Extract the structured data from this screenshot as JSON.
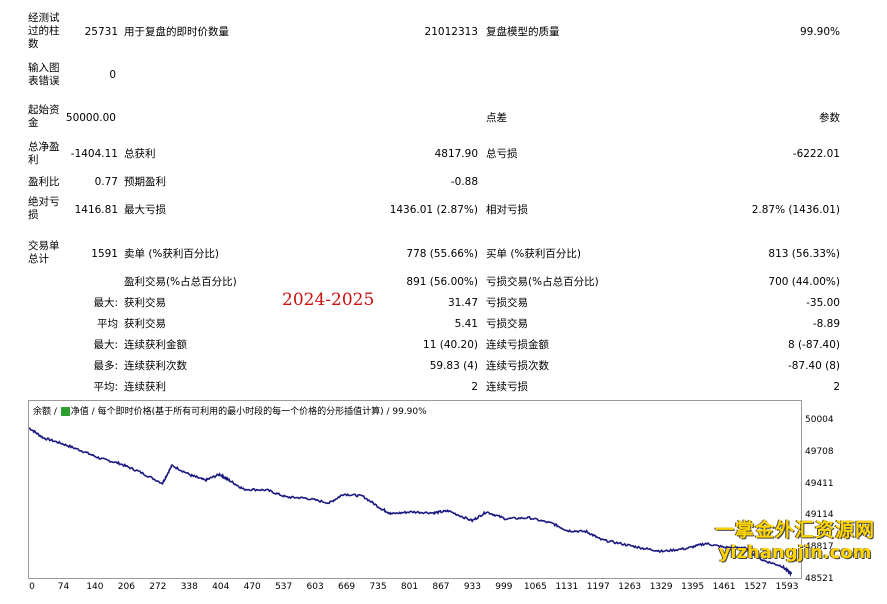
{
  "report": {
    "bars_label": "经测试过的柱数",
    "bars_value": "25731",
    "ticks_label": "用于复盘的即时价数量",
    "ticks_value": "21012313",
    "quality_label": "复盘模型的质量",
    "quality_value": "99.90%",
    "errors_label": "输入图表错误",
    "errors_value": "0",
    "deposit_label": "起始资金",
    "deposit_value": "50000.00",
    "spread_label": "点差",
    "params_label": "参数",
    "net_label": "总净盈利",
    "net_value": "-1404.11",
    "gross_profit_label": "总获利",
    "gross_profit_value": "4817.90",
    "gross_loss_label": "总亏损",
    "gross_loss_value": "-6222.01",
    "pf_label": "盈利比",
    "pf_value": "0.77",
    "expected_label": "预期盈利",
    "expected_value": "-0.88",
    "abs_dd_label": "绝对亏损",
    "abs_dd_value": "1416.81",
    "max_dd_label": "最大亏损",
    "max_dd_value": "1436.01 (2.87%)",
    "rel_dd_label": "相对亏损",
    "rel_dd_value": "2.87% (1436.01)",
    "trades_label": "交易单总计",
    "trades_value": "1591",
    "short_label": "卖单 (%获利百分比)",
    "short_value": "778 (55.66%)",
    "long_label": "买单 (%获利百分比)",
    "long_value": "813 (56.33%)",
    "profit_trades_label": "盈利交易(%占总百分比)",
    "profit_trades_value": "891 (56.00%)",
    "loss_trades_label": "亏损交易(%占总百分比)",
    "loss_trades_value": "700 (44.00%)",
    "largest_prefix": "最大:",
    "largest_win_label": "获利交易",
    "largest_win_value": "31.47",
    "largest_loss_label": "亏损交易",
    "largest_loss_value": "-35.00",
    "avg_prefix": "平均",
    "avg_win_label": "获利交易",
    "avg_win_value": "5.41",
    "avg_loss_label": "亏损交易",
    "avg_loss_value": "-8.89",
    "max_prefix": "最大:",
    "cons_win_amount_label": "连续获利金额",
    "cons_win_amount_value": "11 (40.20)",
    "cons_loss_amount_label": "连续亏损金额",
    "cons_loss_amount_value": "8 (-87.40)",
    "most_prefix": "最多:",
    "cons_win_count_label": "连续获利次数",
    "cons_win_count_value": "59.83 (4)",
    "cons_loss_count_label": "连续亏损次数",
    "cons_loss_count_value": "-87.40 (8)",
    "avg2_prefix": "平均:",
    "avg_cons_win_label": "连续获利",
    "avg_cons_win_value": "2",
    "avg_cons_loss_label": "连续亏损",
    "avg_cons_loss_value": "2"
  },
  "stamp": "2024-2025",
  "chart_data": {
    "type": "line",
    "legend": {
      "balance": "余额",
      "equity": "净值",
      "description": "每个即时价格(基于所有可利用的最小时段的每一个价格的分形插值计算)",
      "quality": "99.90%"
    },
    "colors": {
      "balance": "#1a1a80",
      "equity": "#2e9e2e"
    },
    "x_ticks": [
      "0",
      "74",
      "140",
      "206",
      "272",
      "338",
      "404",
      "470",
      "537",
      "603",
      "669",
      "735",
      "801",
      "867",
      "933",
      "999",
      "1065",
      "1131",
      "1197",
      "1263",
      "1329",
      "1395",
      "1461",
      "1527",
      "1593"
    ],
    "y_ticks": [
      "50004",
      "49708",
      "49411",
      "49114",
      "48817",
      "48521"
    ],
    "x_range": [
      0,
      1620
    ],
    "y_range": [
      48521,
      50070
    ],
    "series": [
      {
        "key": "balance",
        "x": [
          0,
          30,
          70,
          110,
          150,
          190,
          230,
          280,
          300,
          340,
          370,
          400,
          420,
          450,
          500,
          540,
          580,
          630,
          660,
          700,
          740,
          760,
          800,
          850,
          880,
          930,
          960,
          1000,
          1050,
          1100,
          1130,
          1170,
          1200,
          1250,
          1290,
          1330,
          1380,
          1420,
          1460,
          1500,
          1540,
          1580,
          1600
        ],
        "y": [
          50000,
          49900,
          49840,
          49770,
          49690,
          49640,
          49560,
          49440,
          49620,
          49520,
          49470,
          49530,
          49470,
          49380,
          49370,
          49300,
          49290,
          49240,
          49330,
          49310,
          49180,
          49130,
          49150,
          49140,
          49160,
          49060,
          49150,
          49080,
          49090,
          49030,
          48960,
          48950,
          48870,
          48820,
          48780,
          48750,
          48780,
          48830,
          48790,
          48790,
          48660,
          48600,
          48521
        ]
      }
    ]
  },
  "watermark": {
    "line1": "一掌金外汇资源网",
    "line2": "yizhangjin.com"
  }
}
